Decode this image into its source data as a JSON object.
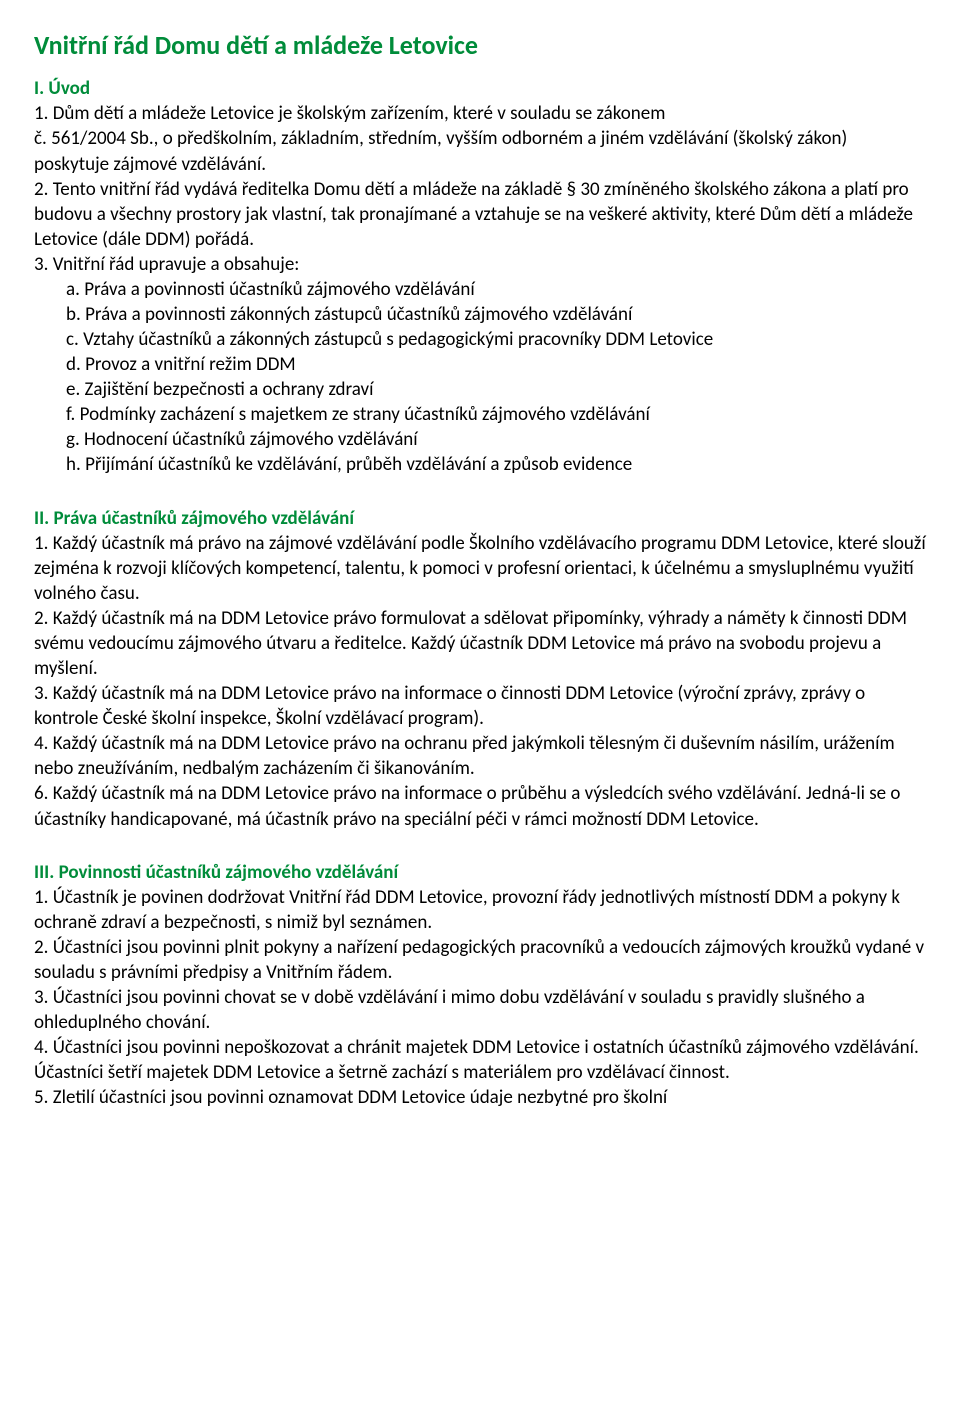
{
  "title": "Vnitřní řád Domu dětí a mládeže Letovice",
  "s1": {
    "heading": "I. Úvod",
    "p1a": "1. Dům dětí a mládeže Letovice je školským zařízením, které v souladu se zákonem",
    "p1b": "č. 561/2004 Sb., o předškolním, základním, středním, vyšším odborném a jiném vzdělávání (školský zákon) poskytuje zájmové vzdělávání.",
    "p2": "2. Tento vnitřní řád vydává ředitelka Domu dětí a mládeže na základě § 30 zmíněného školského zákona a platí pro budovu a všechny prostory jak vlastní, tak pronajímané a vztahuje se na veškeré aktivity, které Dům dětí a mládeže Letovice (dále DDM) pořádá.",
    "p3": "3. Vnitřní řád upravuje a obsahuje:",
    "items": [
      "a.  Práva a povinnosti účastníků zájmového vzdělávání",
      "b.  Práva a povinnosti zákonných zástupců účastníků zájmového vzdělávání",
      "c.  Vztahy účastníků a zákonných zástupců s pedagogickými pracovníky DDM Letovice",
      "d.  Provoz a vnitřní režim DDM",
      "e.  Zajištění bezpečnosti a ochrany zdraví",
      "f.   Podmínky zacházení s majetkem ze strany účastníků zájmového vzdělávání",
      "g.  Hodnocení účastníků zájmového vzdělávání",
      "h.  Přijímání účastníků ke vzdělávání, průběh vzdělávání a způsob evidence"
    ]
  },
  "s2": {
    "heading": "II. Práva účastníků zájmového vzdělávání",
    "p1": "1. Každý účastník má právo na zájmové vzdělávání podle Školního vzdělávacího programu DDM Letovice, které slouží zejména k rozvoji klíčových kompetencí, talentu, k pomoci v profesní orientaci, k účelnému a smysluplnému využití volného času.",
    "p2": "2. Každý účastník má na DDM Letovice právo formulovat a sdělovat připomínky, výhrady a náměty k činnosti DDM svému vedoucímu zájmového útvaru a ředitelce. Každý účastník DDM Letovice má právo na svobodu projevu a myšlení.",
    "p3": "3. Každý účastník má na DDM Letovice právo na informace o činnosti DDM Letovice (výroční zprávy, zprávy o kontrole České školní inspekce, Školní vzdělávací program).",
    "p4": "4. Každý účastník má na DDM Letovice právo na ochranu před jakýmkoli tělesným či duševním násilím, urážením nebo zneužíváním, nedbalým zacházením či šikanováním.",
    "p6": "6. Každý účastník má na DDM Letovice právo na informace o průběhu a výsledcích svého vzdělávání. Jedná-li se o účastníky handicapované, má účastník právo na speciální péči v rámci možností DDM Letovice."
  },
  "s3": {
    "heading": "III. Povinnosti účastníků zájmového vzdělávání",
    "p1": "1. Účastník je povinen dodržovat Vnitřní řád DDM Letovice, provozní řády jednotlivých místností DDM a pokyny k ochraně zdraví a bezpečnosti, s nimiž byl seznámen.",
    "p2": "2. Účastníci jsou povinni plnit pokyny a nařízení pedagogických pracovníků a vedoucích zájmových kroužků vydané v souladu s právními předpisy a Vnitřním řádem.",
    "p3": "3. Účastníci jsou povinni chovat se v době vzdělávání i mimo dobu vzdělávání v souladu s pravidly slušného a ohleduplného chování.",
    "p4": "4. Účastníci jsou povinni nepoškozovat a chránit majetek DDM Letovice i ostatních účastníků zájmového vzdělávání. Účastníci šetří majetek DDM Letovice a šetrně zachází s materiálem pro vzdělávací činnost.",
    "p5": "5. Zletilí účastníci jsou povinni oznamovat DDM Letovice údaje nezbytné pro školní"
  }
}
